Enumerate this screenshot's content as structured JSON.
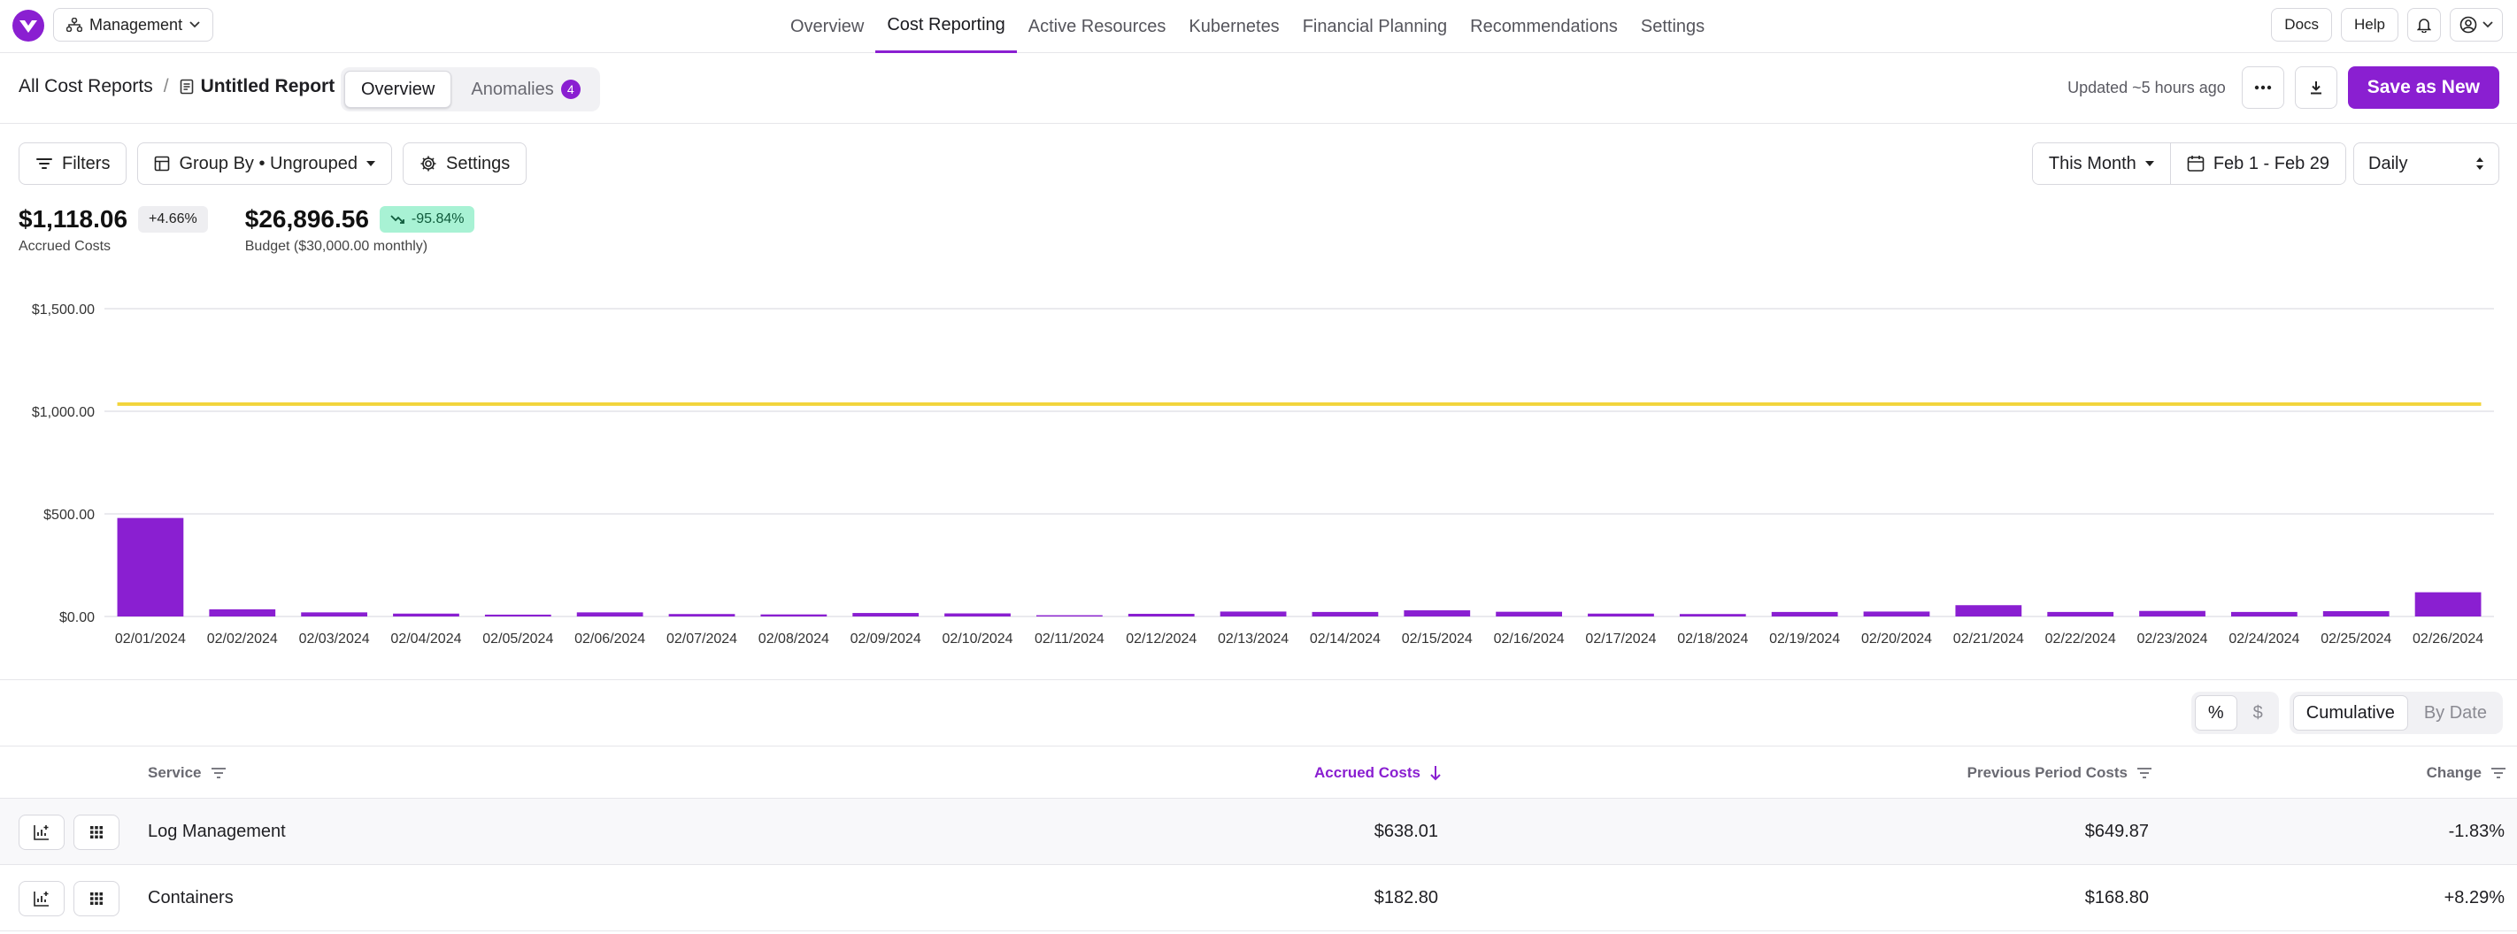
{
  "app": {
    "org_label": "Management",
    "nav": [
      "Overview",
      "Cost Reporting",
      "Active Resources",
      "Kubernetes",
      "Financial Planning",
      "Recommendations",
      "Settings"
    ],
    "active_nav_index": 1,
    "docs_label": "Docs",
    "help_label": "Help",
    "accent": "#8a1fd1"
  },
  "report": {
    "breadcrumb_root": "All Cost Reports",
    "title": "Untitled Report",
    "tabs": [
      {
        "label": "Overview"
      },
      {
        "label": "Anomalies",
        "count": "4"
      }
    ],
    "updated": "Updated ~5 hours ago",
    "save_label": "Save as New"
  },
  "toolbar": {
    "filters": "Filters",
    "group_by": "Group By • Ungrouped",
    "settings": "Settings",
    "period": "This Month",
    "range": "Feb 1 - Feb 29",
    "granularity": "Daily"
  },
  "stats": {
    "accrued": {
      "value": "$1,118.06",
      "change": "+4.66%",
      "label": "Accrued Costs"
    },
    "budget": {
      "value": "$26,896.56",
      "change": "-95.84%",
      "label": "Budget ($30,000.00 monthly)"
    }
  },
  "chart_data": {
    "type": "bar",
    "categories": [
      "02/01/2024",
      "02/02/2024",
      "02/03/2024",
      "02/04/2024",
      "02/05/2024",
      "02/06/2024",
      "02/07/2024",
      "02/08/2024",
      "02/09/2024",
      "02/10/2024",
      "02/11/2024",
      "02/12/2024",
      "02/13/2024",
      "02/14/2024",
      "02/15/2024",
      "02/16/2024",
      "02/17/2024",
      "02/18/2024",
      "02/19/2024",
      "02/20/2024",
      "02/21/2024",
      "02/22/2024",
      "02/23/2024",
      "02/24/2024",
      "02/25/2024",
      "02/26/2024"
    ],
    "values": [
      480,
      35,
      20,
      14,
      9,
      20,
      12,
      10,
      17,
      15,
      6,
      13,
      24,
      22,
      30,
      23,
      14,
      12,
      22,
      24,
      55,
      22,
      27,
      22,
      26,
      118
    ],
    "budget_line": 1035,
    "ylim": [
      0,
      1500
    ],
    "yticks": [
      0,
      500,
      1000,
      1500
    ],
    "ytick_labels": [
      "$0.00",
      "$500.00",
      "$1,000.00",
      "$1,500.00"
    ],
    "bar_color": "#8a1fd1",
    "budget_color": "#f2d43b",
    "grid": true
  },
  "view": {
    "percent": "%",
    "dollar": "$",
    "cumulative": "Cumulative",
    "by_date": "By Date"
  },
  "table": {
    "columns": [
      "Service",
      "Accrued Costs",
      "Previous Period Costs",
      "Change"
    ],
    "rows": [
      {
        "service": "Log Management",
        "accrued": "$638.01",
        "previous": "$649.87",
        "change": "-1.83%"
      },
      {
        "service": "Containers",
        "accrued": "$182.80",
        "previous": "$168.80",
        "change": "+8.29%"
      }
    ]
  }
}
